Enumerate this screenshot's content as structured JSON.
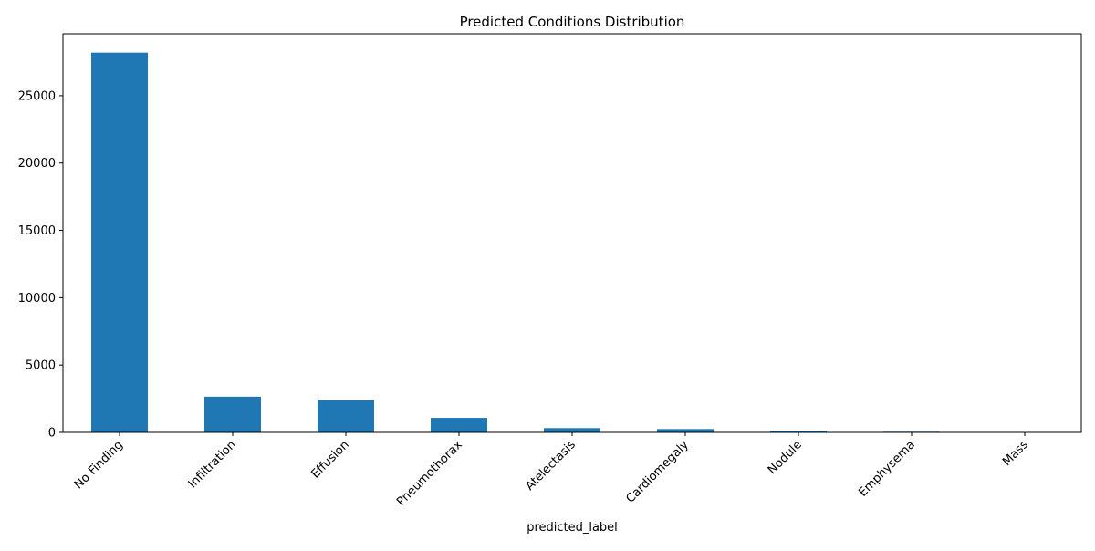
{
  "chart_data": {
    "type": "bar",
    "title": "Predicted Conditions Distribution",
    "xlabel": "predicted_label",
    "ylabel": "",
    "ylim": [
      0,
      29600
    ],
    "yticks": [
      0,
      5000,
      10000,
      15000,
      20000,
      25000
    ],
    "grid": false,
    "legend": "none",
    "bar_color": "#1f77b4",
    "categories": [
      "No Finding",
      "Infiltration",
      "Effusion",
      "Pneumothorax",
      "Atelectasis",
      "Cardiomegaly",
      "Nodule",
      "Emphysema",
      "Mass"
    ],
    "values": [
      28200,
      2650,
      2380,
      1080,
      320,
      250,
      110,
      50,
      20
    ]
  }
}
